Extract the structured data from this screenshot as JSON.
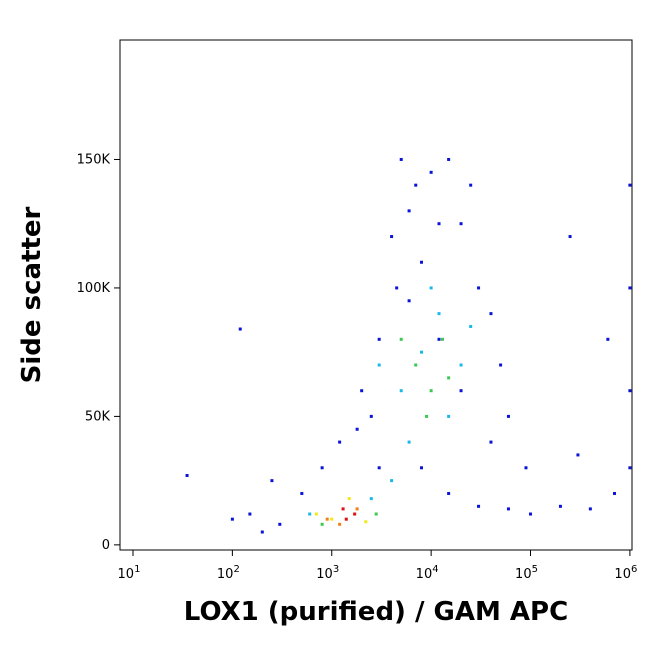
{
  "chart_data": {
    "type": "scatter",
    "xlabel": "LOX1 (purified) / GAM APC",
    "ylabel": "Side scatter",
    "xscale": "log",
    "xlim": [
      7.4,
      1050000
    ],
    "ylim": [
      -2000,
      196500
    ],
    "xticks": [
      {
        "value": 10,
        "label": "10",
        "power": "1"
      },
      {
        "value": 100,
        "label": "10",
        "power": "2"
      },
      {
        "value": 1000,
        "label": "10",
        "power": "3"
      },
      {
        "value": 10000,
        "label": "10",
        "power": "4"
      },
      {
        "value": 100000,
        "label": "10",
        "power": "5"
      },
      {
        "value": 1000000,
        "label": "10",
        "power": "6"
      }
    ],
    "yticks": [
      0,
      {
        "value": 50000,
        "label": "50K"
      },
      {
        "value": 100000,
        "label": "100K"
      },
      {
        "value": 150000,
        "label": "150K"
      }
    ],
    "series": [
      {
        "color": "#0a14d8",
        "x": [
          300,
          500,
          800,
          1200,
          2000,
          3000,
          4000,
          5000,
          6000,
          8000,
          10000,
          15000,
          20000,
          25000,
          30000,
          40000,
          50000,
          60000,
          8000,
          15000,
          30000,
          60000,
          100000,
          200000,
          400000,
          700000,
          1000000,
          1000000,
          1000000,
          1000000,
          200,
          150,
          250,
          100,
          35,
          120,
          3000,
          4500,
          7000,
          12000,
          20000,
          2500,
          1800,
          40000,
          90000,
          300000,
          600000,
          250000,
          12000,
          6000
        ],
        "values": [
          8000,
          20000,
          30000,
          40000,
          60000,
          80000,
          120000,
          150000,
          130000,
          110000,
          145000,
          150000,
          125000,
          140000,
          100000,
          90000,
          70000,
          50000,
          30000,
          20000,
          15000,
          14000,
          12000,
          15000,
          14000,
          20000,
          30000,
          60000,
          100000,
          140000,
          5000,
          12000,
          25000,
          10000,
          27000,
          84000,
          30000,
          100000,
          140000,
          80000,
          60000,
          50000,
          45000,
          40000,
          30000,
          35000,
          80000,
          120000,
          125000,
          95000
        ]
      },
      {
        "color": "#18b8e8",
        "x": [
          5000,
          8000,
          12000,
          20000,
          6000,
          15000,
          4000,
          600,
          2500,
          10000,
          3000,
          25000
        ],
        "values": [
          60000,
          75000,
          90000,
          70000,
          40000,
          50000,
          25000,
          12000,
          18000,
          100000,
          70000,
          85000
        ]
      },
      {
        "color": "#3cc850",
        "x": [
          7000,
          10000,
          13000,
          9000,
          800,
          2800,
          5000,
          15000
        ],
        "values": [
          70000,
          60000,
          80000,
          50000,
          8000,
          12000,
          80000,
          65000
        ]
      },
      {
        "color": "#f0e818",
        "x": [
          1000,
          2200,
          700,
          1500
        ],
        "values": [
          10000,
          9000,
          12000,
          18000
        ]
      },
      {
        "color": "#f08010",
        "x": [
          1200,
          1800,
          900
        ],
        "values": [
          8000,
          14000,
          10000
        ]
      },
      {
        "color": "#e01010",
        "x": [
          1400,
          1700,
          1300
        ],
        "values": [
          10000,
          12000,
          14000
        ]
      }
    ]
  }
}
